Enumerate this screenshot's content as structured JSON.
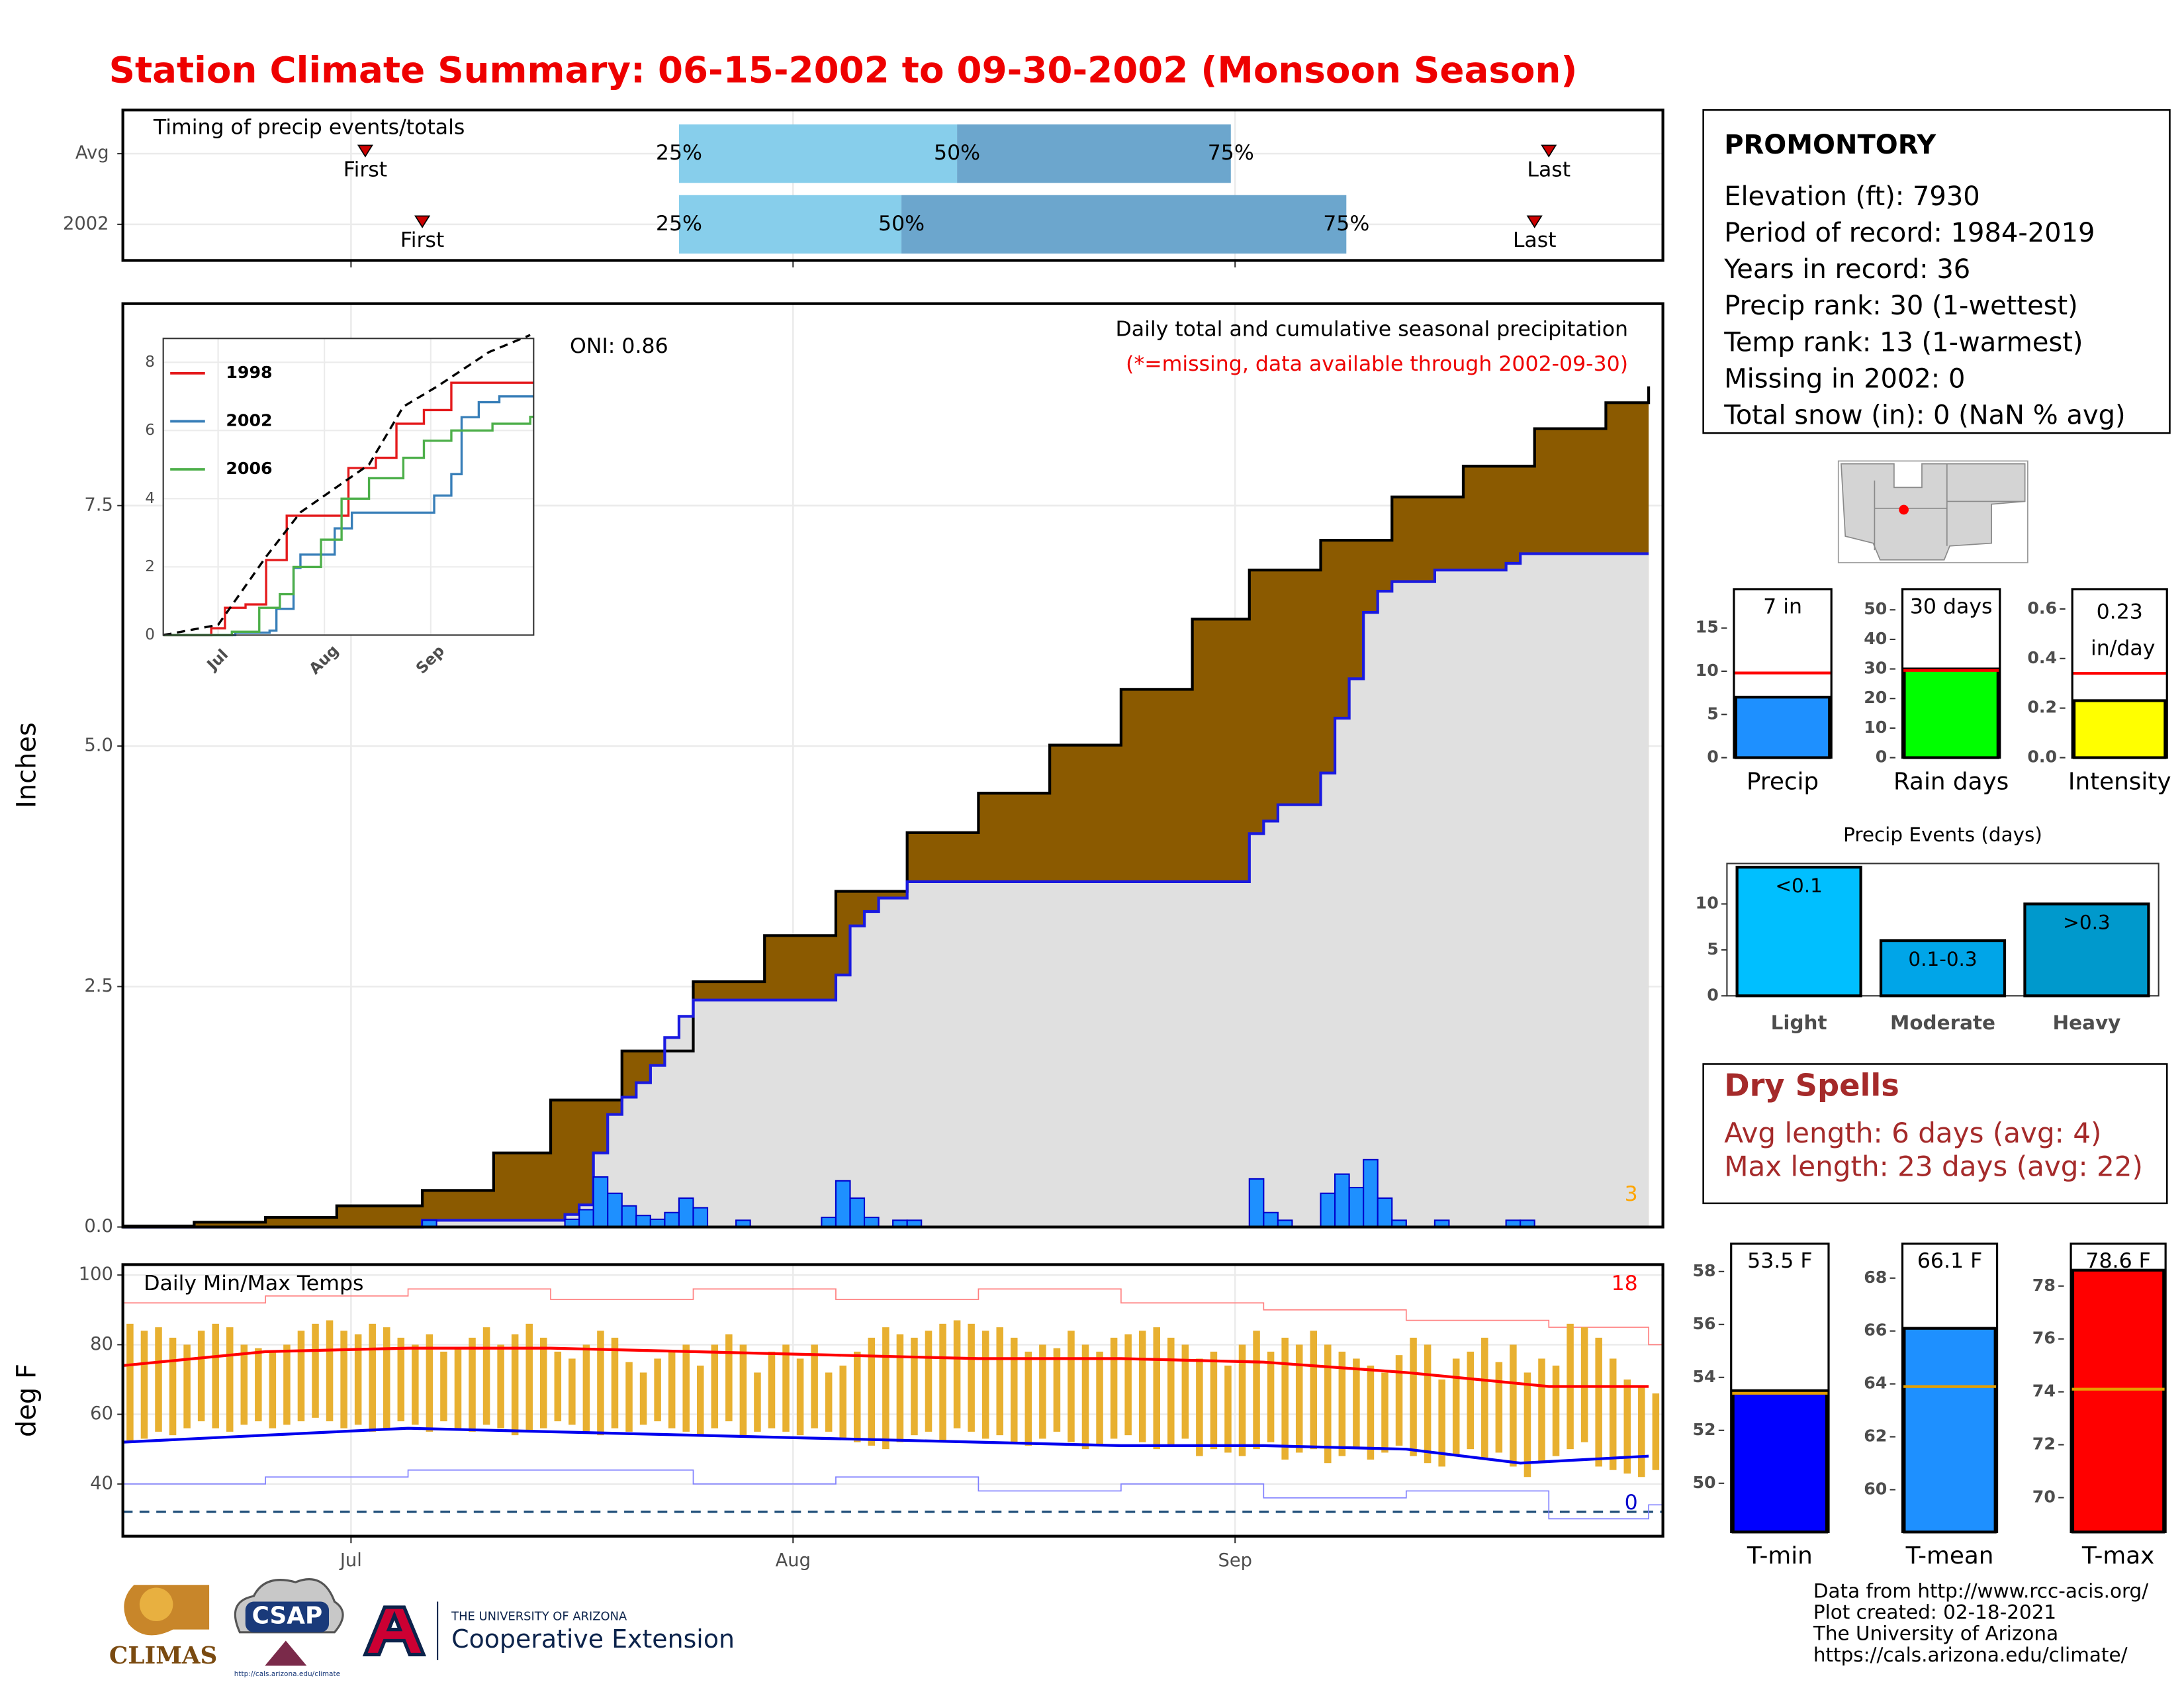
{
  "header": {
    "title": "Station Climate Summary: 06-15-2002 to 09-30-2002 (Monsoon Season)"
  },
  "station": {
    "name": "PROMONTORY",
    "lines": [
      "Elevation (ft): 7930",
      "Period of record: 1984-2019",
      "Years in record: 36",
      "Precip rank: 30 (1-wettest)",
      "Temp rank: 13 (1-warmest)",
      "Missing in 2002: 0",
      "Total snow (in): 0 (NaN % avg)"
    ]
  },
  "dry_spells": {
    "title": "Dry Spells",
    "lines": [
      "Avg length: 6 days (avg: 4)",
      "Max length: 23 days (avg: 22)"
    ]
  },
  "footer": {
    "credits": [
      "Data from http://www.rcc-acis.org/",
      "Plot created: 02-18-2021",
      "The University of Arizona",
      "https://cals.arizona.edu/climate/"
    ],
    "logos": {
      "climas": "CLIMAS",
      "csap": "CSAP",
      "csap_url": "http://cals.arizona.edu/climate",
      "ua": "THE UNIVERSITY OF ARIZONA",
      "extension": "Cooperative Extension"
    }
  },
  "chart_data": [
    {
      "type": "timeline",
      "title": "Timing of precip events/totals",
      "xlim": [
        0,
        108
      ],
      "labels": {
        "first": "First",
        "last": "Last",
        "q25": "25%",
        "q50": "50%",
        "q75": "75%"
      },
      "colors": [
        "#87ceeb",
        "#6ca6cd"
      ],
      "marker_color": "#cc0000",
      "rows": [
        {
          "label": "Avg",
          "first": 17,
          "q25": 39,
          "q50": 58.5,
          "q75": 77.7,
          "last": 100
        },
        {
          "label": "2002",
          "first": 21,
          "q25": 39,
          "q50": 54.6,
          "q75": 85.8,
          "last": 99
        }
      ]
    },
    {
      "type": "step",
      "subtitle": "Daily total and cumulative seasonal precipitation",
      "note": "(*=missing, data available through 2002-09-30)",
      "oni": "ONI: 0.86",
      "annotation": "3",
      "ylabel": "Inches",
      "xlim": [
        0,
        108
      ],
      "ylim": [
        0,
        9.6
      ],
      "grid": true,
      "yticks": [
        {
          "value": 0,
          "label": "0.0"
        },
        2.5,
        {
          "value": 5,
          "label": "5.0"
        },
        7.5
      ],
      "series": [
        {
          "color": "#000000",
          "fill": "#8b5a00",
          "x": [
            0,
            5,
            10,
            15,
            21,
            26,
            30,
            35,
            40,
            45,
            50,
            55,
            60,
            65,
            70,
            75,
            79,
            84,
            89,
            94,
            99,
            104,
            107
          ],
          "values": [
            0.01,
            0.05,
            0.1,
            0.22,
            0.38,
            0.77,
            1.32,
            1.83,
            2.55,
            3.03,
            3.49,
            4.1,
            4.51,
            5.01,
            5.59,
            6.32,
            6.83,
            7.14,
            7.59,
            7.91,
            8.3,
            8.57,
            8.74
          ]
        },
        {
          "color": "#1a1ae0",
          "fill": "#e0e0e0",
          "x": [
            0,
            21,
            31,
            32,
            33,
            34,
            35,
            36,
            37,
            38,
            39,
            40,
            50,
            51,
            52,
            53,
            55,
            79,
            80,
            81,
            84,
            85,
            86,
            87,
            88,
            89,
            92,
            97,
            98
          ],
          "values": [
            0,
            0.07,
            0.13,
            0.23,
            0.77,
            1.17,
            1.35,
            1.5,
            1.68,
            1.97,
            2.19,
            2.36,
            2.62,
            3.13,
            3.28,
            3.42,
            3.59,
            4.09,
            4.22,
            4.39,
            4.72,
            5.29,
            5.7,
            6.39,
            6.61,
            6.71,
            6.83,
            6.9,
            7.0
          ]
        }
      ],
      "bars": {
        "color": "#1e90ff",
        "stroke": "#0000cc",
        "x": [
          21,
          31,
          32,
          33,
          34,
          35,
          36,
          37,
          38,
          39,
          40,
          43,
          49,
          50,
          51,
          52,
          54,
          55,
          79,
          80,
          81,
          84,
          85,
          86,
          87,
          88,
          89,
          92,
          97,
          98
        ],
        "values": [
          0.07,
          0.08,
          0.18,
          0.52,
          0.35,
          0.22,
          0.12,
          0.08,
          0.15,
          0.3,
          0.2,
          0.07,
          0.1,
          0.48,
          0.3,
          0.1,
          0.07,
          0.07,
          0.5,
          0.15,
          0.07,
          0.35,
          0.55,
          0.41,
          0.7,
          0.3,
          0.07,
          0.07,
          0.07,
          0.07
        ]
      }
    },
    {
      "type": "line",
      "xlim": [
        0,
        108
      ],
      "ylim": [
        0,
        8.7
      ],
      "xticks": [
        {
          "value": 16,
          "label": "Jul"
        },
        {
          "value": 47,
          "label": "Aug"
        },
        {
          "value": 78,
          "label": "Sep"
        }
      ],
      "yticks": [
        0,
        2,
        4,
        6,
        8
      ],
      "series": [
        {
          "name": "1998",
          "color": "#e41a1c",
          "x": [
            0,
            14,
            18,
            24,
            30,
            36,
            44,
            54,
            62,
            68,
            76,
            84,
            107
          ],
          "values": [
            0,
            0.2,
            0.8,
            0.9,
            2.2,
            3.5,
            3.5,
            4.9,
            5.2,
            6.2,
            6.6,
            7.4,
            7.4
          ]
        },
        {
          "name": "2002",
          "color": "#377eb8",
          "x": [
            0,
            21,
            31,
            33,
            38,
            40,
            50,
            55,
            79,
            84,
            87,
            92,
            98,
            107
          ],
          "values": [
            0,
            0.07,
            0.13,
            0.77,
            1.97,
            2.36,
            3.13,
            3.59,
            4.09,
            4.72,
            6.39,
            6.83,
            7.0,
            7.0
          ]
        },
        {
          "name": "2006",
          "color": "#4daf4a",
          "x": [
            0,
            20,
            28,
            34,
            38,
            46,
            52,
            60,
            70,
            76,
            84,
            96,
            107
          ],
          "values": [
            0,
            0.1,
            0.8,
            1.2,
            2.0,
            2.8,
            4.0,
            4.6,
            5.2,
            5.7,
            6.0,
            6.2,
            6.4
          ]
        },
        {
          "color": "#000000",
          "dash": true,
          "x": [
            0,
            16,
            30,
            40,
            50,
            60,
            70,
            80,
            95,
            107
          ],
          "values": [
            0,
            0.3,
            2.3,
            3.6,
            4.3,
            5.0,
            6.7,
            7.3,
            8.3,
            8.8
          ]
        }
      ]
    },
    {
      "type": "range",
      "title": "Daily Min/Max Temps",
      "ylabel": "deg F",
      "xlim": [
        0,
        108
      ],
      "xticks": [
        {
          "value": 16,
          "label": "Jul"
        },
        {
          "value": 47,
          "label": "Aug"
        },
        {
          "value": 78,
          "label": "Sep"
        }
      ],
      "ylim": [
        25,
        103
      ],
      "yticks": [
        40,
        60,
        80,
        100
      ],
      "grid": true,
      "freeze": 32,
      "freeze_color": "#1f4e79",
      "range_color": "#e8b030",
      "high": [
        86,
        84,
        85,
        82,
        80,
        84,
        86,
        85,
        80,
        79,
        78,
        80,
        84,
        86,
        87,
        84,
        83,
        86,
        85,
        82,
        80,
        83,
        78,
        79,
        82,
        85,
        80,
        83,
        86,
        82,
        78,
        76,
        80,
        84,
        82,
        75,
        72,
        76,
        78,
        80,
        74,
        80,
        83,
        80,
        72,
        78,
        80,
        76,
        80,
        72,
        74,
        78,
        82,
        85,
        83,
        82,
        84,
        86,
        87,
        86,
        84,
        85,
        82,
        78,
        80,
        79,
        84,
        80,
        78,
        82,
        83,
        84,
        85,
        82,
        80,
        76,
        78,
        74,
        80,
        84,
        78,
        82,
        80,
        84,
        80,
        78,
        76,
        74,
        72,
        77,
        82,
        80,
        70,
        76,
        78,
        82,
        75,
        80,
        72,
        76,
        74,
        86,
        85,
        82,
        76,
        70,
        68,
        66
      ],
      "low": [
        52,
        53,
        55,
        54,
        56,
        58,
        56,
        55,
        57,
        58,
        56,
        57,
        58,
        59,
        58,
        56,
        57,
        55,
        56,
        58,
        57,
        55,
        58,
        56,
        55,
        57,
        56,
        54,
        55,
        56,
        58,
        57,
        55,
        54,
        56,
        55,
        57,
        58,
        56,
        55,
        54,
        56,
        58,
        54,
        55,
        56,
        55,
        54,
        56,
        55,
        53,
        52,
        51,
        50,
        52,
        54,
        55,
        52,
        56,
        55,
        53,
        54,
        52,
        51,
        53,
        55,
        52,
        50,
        51,
        53,
        54,
        52,
        50,
        51,
        53,
        48,
        50,
        49,
        48,
        50,
        52,
        47,
        49,
        50,
        46,
        48,
        50,
        47,
        49,
        51,
        48,
        46,
        45,
        48,
        50,
        47,
        49,
        45,
        42,
        46,
        48,
        50,
        52,
        45,
        44,
        43,
        42,
        44
      ],
      "series": [
        {
          "color": "#ff0000",
          "width": 2,
          "x": [
            0,
            10,
            20,
            30,
            40,
            50,
            60,
            70,
            80,
            90,
            100,
            107
          ],
          "values": [
            74,
            78,
            79,
            79,
            78,
            77,
            76,
            76,
            75,
            72,
            68,
            68
          ]
        },
        {
          "color": "#0000ee",
          "width": 2,
          "x": [
            0,
            10,
            20,
            30,
            40,
            50,
            60,
            70,
            80,
            90,
            98,
            107
          ],
          "values": [
            52,
            54,
            56,
            55,
            54,
            53,
            52,
            51,
            51,
            50,
            46,
            48
          ]
        },
        {
          "color": "#ff8080",
          "width": 0.8,
          "step": true,
          "x": [
            0,
            10,
            20,
            30,
            40,
            50,
            60,
            70,
            80,
            90,
            100,
            107
          ],
          "values": [
            92,
            94,
            96,
            93,
            96,
            93,
            96,
            92,
            90,
            87,
            85,
            80
          ]
        },
        {
          "color": "#8080ff",
          "width": 0.8,
          "step": true,
          "x": [
            0,
            10,
            20,
            30,
            40,
            50,
            60,
            70,
            80,
            90,
            100,
            107
          ],
          "values": [
            40,
            42,
            44,
            44,
            40,
            42,
            38,
            40,
            36,
            38,
            30,
            34
          ]
        }
      ],
      "annotations": [
        {
          "text": "18",
          "color": "#ff0000"
        },
        {
          "text": "0",
          "color": "#0000cc"
        }
      ]
    },
    {
      "type": "bar",
      "categories": [
        "Precip"
      ],
      "values": [
        7
      ],
      "value_labels": [
        "7 in"
      ],
      "color": "#1e90ff",
      "average": 9.8,
      "average_color": "#ff0000",
      "ylim": [
        0,
        19.5
      ],
      "yticks": [
        0,
        5,
        10,
        15
      ]
    },
    {
      "type": "bar",
      "categories": [
        "Rain days"
      ],
      "values": [
        30
      ],
      "value_labels": [
        "30 days"
      ],
      "color": "#00ff00",
      "average": 29.5,
      "average_color": "#ff0000",
      "ylim": [
        0,
        57
      ],
      "yticks": [
        0,
        10,
        20,
        30,
        40,
        50
      ]
    },
    {
      "type": "bar",
      "categories": [
        "Intensity"
      ],
      "values": [
        0.23
      ],
      "value_labels": [
        "0.23 in/day"
      ],
      "color": "#ffff00",
      "average": 0.34,
      "average_color": "#ff0000",
      "ylim": [
        0,
        0.68
      ],
      "yticks": [
        {
          "value": 0,
          "label": "0.0"
        },
        0.2,
        0.4,
        0.6
      ]
    },
    {
      "type": "bar",
      "title": "Precip Events (days)",
      "categories": [
        "Light",
        "Moderate",
        "Heavy"
      ],
      "values": [
        14,
        6,
        10
      ],
      "bar_labels": [
        "<0.1",
        "0.1-0.3",
        ">0.3"
      ],
      "colors": [
        "#00bfff",
        "#00a5e8",
        "#0099cc"
      ],
      "ylim": [
        0,
        14.4
      ],
      "yticks": [
        0,
        5,
        10
      ]
    },
    {
      "type": "bar",
      "categories": [
        "T-min"
      ],
      "values": [
        53.5
      ],
      "value_labels": [
        "53.5 F"
      ],
      "color": "#0000ff",
      "average": 53.4,
      "average_color": "#e69f00",
      "ylim": [
        48.16,
        59.05
      ],
      "yticks": [
        50,
        52,
        54,
        56,
        58
      ]
    },
    {
      "type": "bar",
      "categories": [
        "T-mean"
      ],
      "values": [
        66.1
      ],
      "value_labels": [
        "66.1 F"
      ],
      "color": "#1e90ff",
      "average": 63.9,
      "average_color": "#e69f00",
      "ylim": [
        58.4,
        69.3
      ],
      "yticks": [
        60,
        62,
        64,
        66,
        68
      ]
    },
    {
      "type": "bar",
      "categories": [
        "T-max"
      ],
      "values": [
        78.6
      ],
      "value_labels": [
        "78.6 F"
      ],
      "color": "#ff0000",
      "average": 74.1,
      "average_color": "#e69f00",
      "ylim": [
        68.7,
        79.6
      ],
      "yticks": [
        70,
        72,
        74,
        76,
        78
      ]
    }
  ]
}
